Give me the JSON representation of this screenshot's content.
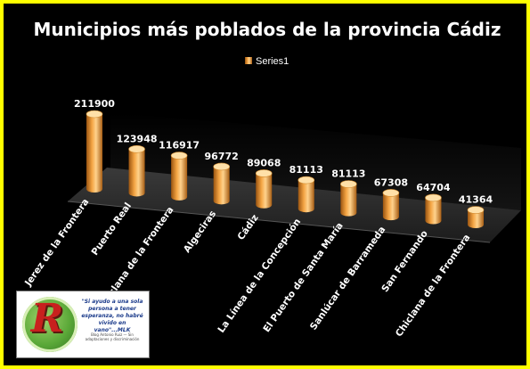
{
  "chart_data": {
    "type": "bar",
    "title": "Municipios más poblados de la provincia Cádiz",
    "series": [
      {
        "name": "Series1",
        "values": [
          211900,
          123948,
          116917,
          96772,
          89068,
          81113,
          81113,
          67308,
          64704,
          41364
        ]
      }
    ],
    "categories": [
      "Jerez de la Frontera",
      "Puerto Real",
      "Chiclana de la Frontera",
      "Algeciras",
      "Cádiz",
      "La Línea de la Concepción",
      "El Puerto de Santa María",
      "Sanlúcar de Barrameda",
      "San Fernando",
      "Chiclana de la Frontera"
    ],
    "data_labels": [
      "211900",
      "123948",
      "116917",
      "96772",
      "89068",
      "81113",
      "81113",
      "67308",
      "64704",
      "41364"
    ],
    "legend": "top",
    "grid": false,
    "colors": {
      "bar": "#f0a040",
      "bar_dark": "#8a4a0c",
      "bar_light": "#ffe0a8",
      "background": "#000000",
      "border": "#ffff00"
    }
  },
  "logo": {
    "quote": "\"Si ayudo a una sola persona a tener esperanza, no habré vivido en vano\"...MLK",
    "sub": "Blog Antonio Ruiz — Sin adaptaciones y discriminación"
  }
}
